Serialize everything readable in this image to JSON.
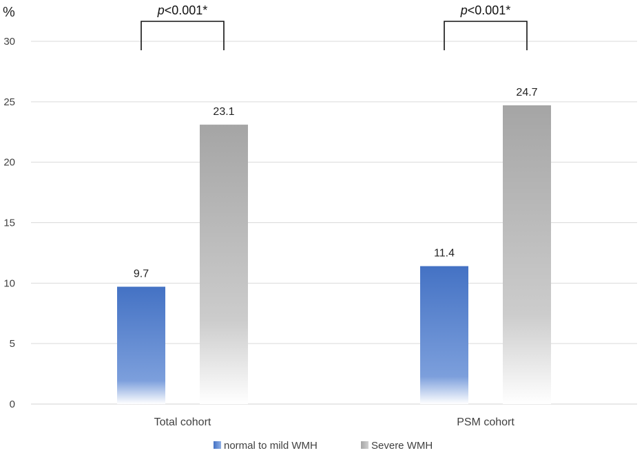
{
  "chart_data": {
    "type": "bar",
    "ylabel": "%",
    "ylim": [
      0,
      30
    ],
    "yticks": [
      0,
      5,
      10,
      15,
      20,
      25,
      30
    ],
    "grid": true,
    "legend_position": "bottom",
    "categories": [
      "Total cohort",
      "PSM cohort"
    ],
    "series": [
      {
        "name": "normal to mild WMH",
        "values": [
          9.7,
          11.4
        ],
        "color": "#4472c4"
      },
      {
        "name": "Severe WMH",
        "values": [
          23.1,
          24.7
        ],
        "color": "#a5a5a5"
      }
    ],
    "data_labels": [
      [
        "9.7",
        "11.4"
      ],
      [
        "23.1",
        "24.7"
      ]
    ],
    "annotations": [
      {
        "category": "Total cohort",
        "p_prefix": "p",
        "p_text": "<0.001*"
      },
      {
        "category": "PSM cohort",
        "p_prefix": "p",
        "p_text": "<0.001*"
      }
    ]
  }
}
